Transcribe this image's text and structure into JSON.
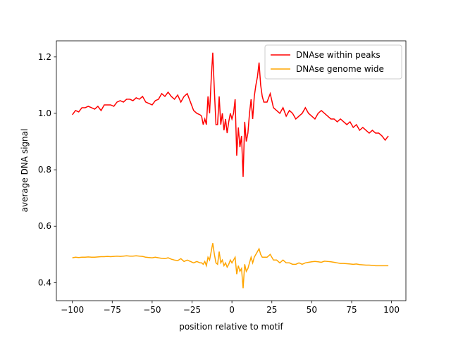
{
  "chart_data": {
    "type": "line",
    "xlabel": "position relative to motif",
    "ylabel": "average DNA signal",
    "x": [
      -100,
      -98,
      -96,
      -94,
      -92,
      -90,
      -88,
      -86,
      -84,
      -82,
      -80,
      -78,
      -76,
      -74,
      -72,
      -70,
      -68,
      -66,
      -64,
      -62,
      -60,
      -58,
      -56,
      -54,
      -52,
      -50,
      -48,
      -46,
      -44,
      -42,
      -40,
      -38,
      -36,
      -34,
      -32,
      -30,
      -28,
      -26,
      -24,
      -22,
      -20,
      -19,
      -18,
      -17,
      -16,
      -15,
      -14,
      -13,
      -12,
      -11,
      -10,
      -9,
      -8,
      -7,
      -6,
      -5,
      -4,
      -3,
      -2,
      -1,
      0,
      1,
      2,
      3,
      4,
      5,
      6,
      7,
      8,
      9,
      10,
      11,
      12,
      13,
      14,
      15,
      16,
      17,
      18,
      19,
      20,
      22,
      24,
      26,
      28,
      30,
      32,
      34,
      36,
      38,
      40,
      42,
      44,
      46,
      48,
      50,
      52,
      54,
      56,
      58,
      60,
      62,
      64,
      66,
      68,
      70,
      72,
      74,
      76,
      78,
      80,
      82,
      84,
      86,
      88,
      90,
      92,
      94,
      96,
      98
    ],
    "series": [
      {
        "name": "DNAse within peaks",
        "color": "#ff0000",
        "values": [
          0.995,
          1.01,
          1.005,
          1.02,
          1.02,
          1.025,
          1.02,
          1.015,
          1.025,
          1.01,
          1.03,
          1.03,
          1.03,
          1.025,
          1.04,
          1.045,
          1.04,
          1.05,
          1.05,
          1.045,
          1.055,
          1.05,
          1.06,
          1.04,
          1.035,
          1.03,
          1.045,
          1.05,
          1.07,
          1.06,
          1.075,
          1.06,
          1.05,
          1.065,
          1.04,
          1.06,
          1.07,
          1.04,
          1.01,
          1.0,
          0.995,
          0.99,
          0.96,
          0.98,
          0.96,
          1.06,
          1.0,
          1.12,
          1.215,
          1.08,
          0.96,
          0.96,
          1.06,
          0.96,
          1.0,
          0.94,
          0.98,
          0.93,
          0.97,
          1.0,
          0.98,
          1.0,
          1.05,
          0.85,
          0.95,
          0.88,
          0.92,
          0.775,
          0.97,
          0.9,
          0.93,
          1.0,
          1.05,
          0.98,
          1.06,
          1.1,
          1.13,
          1.18,
          1.1,
          1.06,
          1.04,
          1.04,
          1.07,
          1.02,
          1.01,
          1.0,
          1.02,
          0.99,
          1.01,
          1.0,
          0.98,
          0.99,
          1.0,
          1.02,
          1.0,
          0.99,
          0.98,
          1.0,
          1.01,
          1.0,
          0.99,
          0.98,
          0.98,
          0.97,
          0.98,
          0.97,
          0.96,
          0.97,
          0.95,
          0.96,
          0.94,
          0.95,
          0.94,
          0.93,
          0.94,
          0.93,
          0.93,
          0.92,
          0.905,
          0.92
        ]
      },
      {
        "name": "DNAse genome wide",
        "color": "#ffa500",
        "values": [
          0.488,
          0.49,
          0.489,
          0.49,
          0.49,
          0.491,
          0.49,
          0.49,
          0.491,
          0.492,
          0.492,
          0.493,
          0.492,
          0.493,
          0.494,
          0.493,
          0.494,
          0.495,
          0.494,
          0.494,
          0.495,
          0.494,
          0.493,
          0.49,
          0.489,
          0.488,
          0.49,
          0.488,
          0.486,
          0.485,
          0.488,
          0.483,
          0.48,
          0.478,
          0.485,
          0.475,
          0.48,
          0.475,
          0.47,
          0.475,
          0.47,
          0.47,
          0.465,
          0.475,
          0.46,
          0.49,
          0.48,
          0.51,
          0.54,
          0.5,
          0.47,
          0.465,
          0.51,
          0.47,
          0.48,
          0.46,
          0.47,
          0.455,
          0.465,
          0.48,
          0.47,
          0.48,
          0.49,
          0.43,
          0.46,
          0.44,
          0.45,
          0.38,
          0.465,
          0.44,
          0.45,
          0.47,
          0.49,
          0.47,
          0.49,
          0.5,
          0.51,
          0.52,
          0.5,
          0.49,
          0.49,
          0.49,
          0.5,
          0.48,
          0.48,
          0.47,
          0.48,
          0.47,
          0.47,
          0.465,
          0.465,
          0.47,
          0.465,
          0.47,
          0.472,
          0.474,
          0.475,
          0.474,
          0.472,
          0.476,
          0.475,
          0.474,
          0.472,
          0.47,
          0.468,
          0.468,
          0.467,
          0.466,
          0.465,
          0.466,
          0.464,
          0.463,
          0.462,
          0.462,
          0.461,
          0.46,
          0.46,
          0.46,
          0.46,
          0.46
        ]
      }
    ],
    "xlim": [
      -110,
      109
    ],
    "ylim": [
      0.336,
      1.257
    ],
    "xticks": [
      {
        "value": -100,
        "label": "−100"
      },
      {
        "value": -75,
        "label": "−75"
      },
      {
        "value": -50,
        "label": "−50"
      },
      {
        "value": -25,
        "label": "−25"
      },
      0,
      25,
      50,
      75,
      100
    ],
    "yticks": [
      0.4,
      0.6,
      0.8,
      {
        "value": 1.0,
        "label": "1.0"
      },
      1.2
    ],
    "grid": false,
    "legend": "upper right"
  }
}
